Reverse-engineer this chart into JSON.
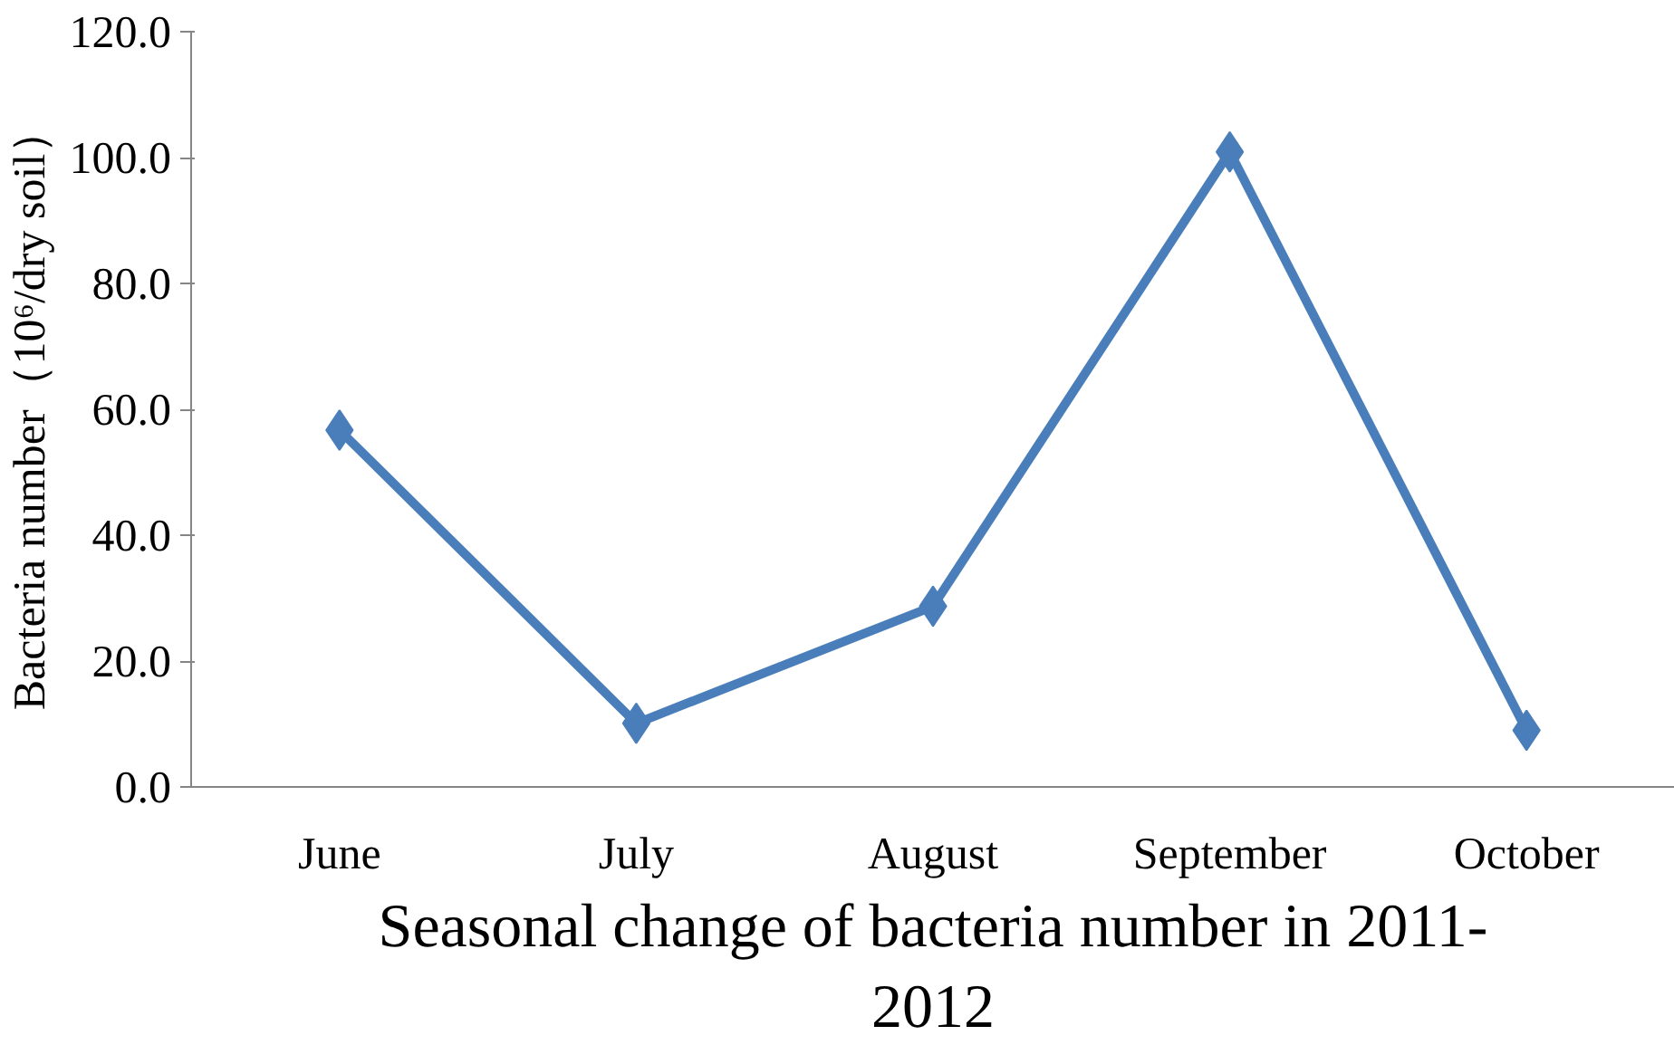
{
  "chart_data": {
    "type": "line",
    "xlabel": "Seasonal change of bacteria number in 2011-\n2012",
    "ylabel": "Bacteria number（10⁶/dry soil）",
    "categories": [
      "June",
      "July",
      "August",
      "September",
      "October"
    ],
    "series": [
      {
        "color": "#4a7ebb",
        "values": [
          56.7,
          10.1,
          28.7,
          100.9,
          9.0
        ]
      }
    ],
    "ylim": [
      0,
      120
    ],
    "yticks": [
      {
        "value": 0,
        "label": "0.0"
      },
      {
        "value": 20,
        "label": "20.0"
      },
      {
        "value": 40,
        "label": "40.0"
      },
      {
        "value": 60,
        "label": "60.0"
      },
      {
        "value": 80,
        "label": "80.0"
      },
      {
        "value": 100,
        "label": "100.0"
      },
      {
        "value": 120,
        "label": "120.0"
      }
    ],
    "grid": false,
    "marker": "diamond",
    "line_style": "solid"
  }
}
